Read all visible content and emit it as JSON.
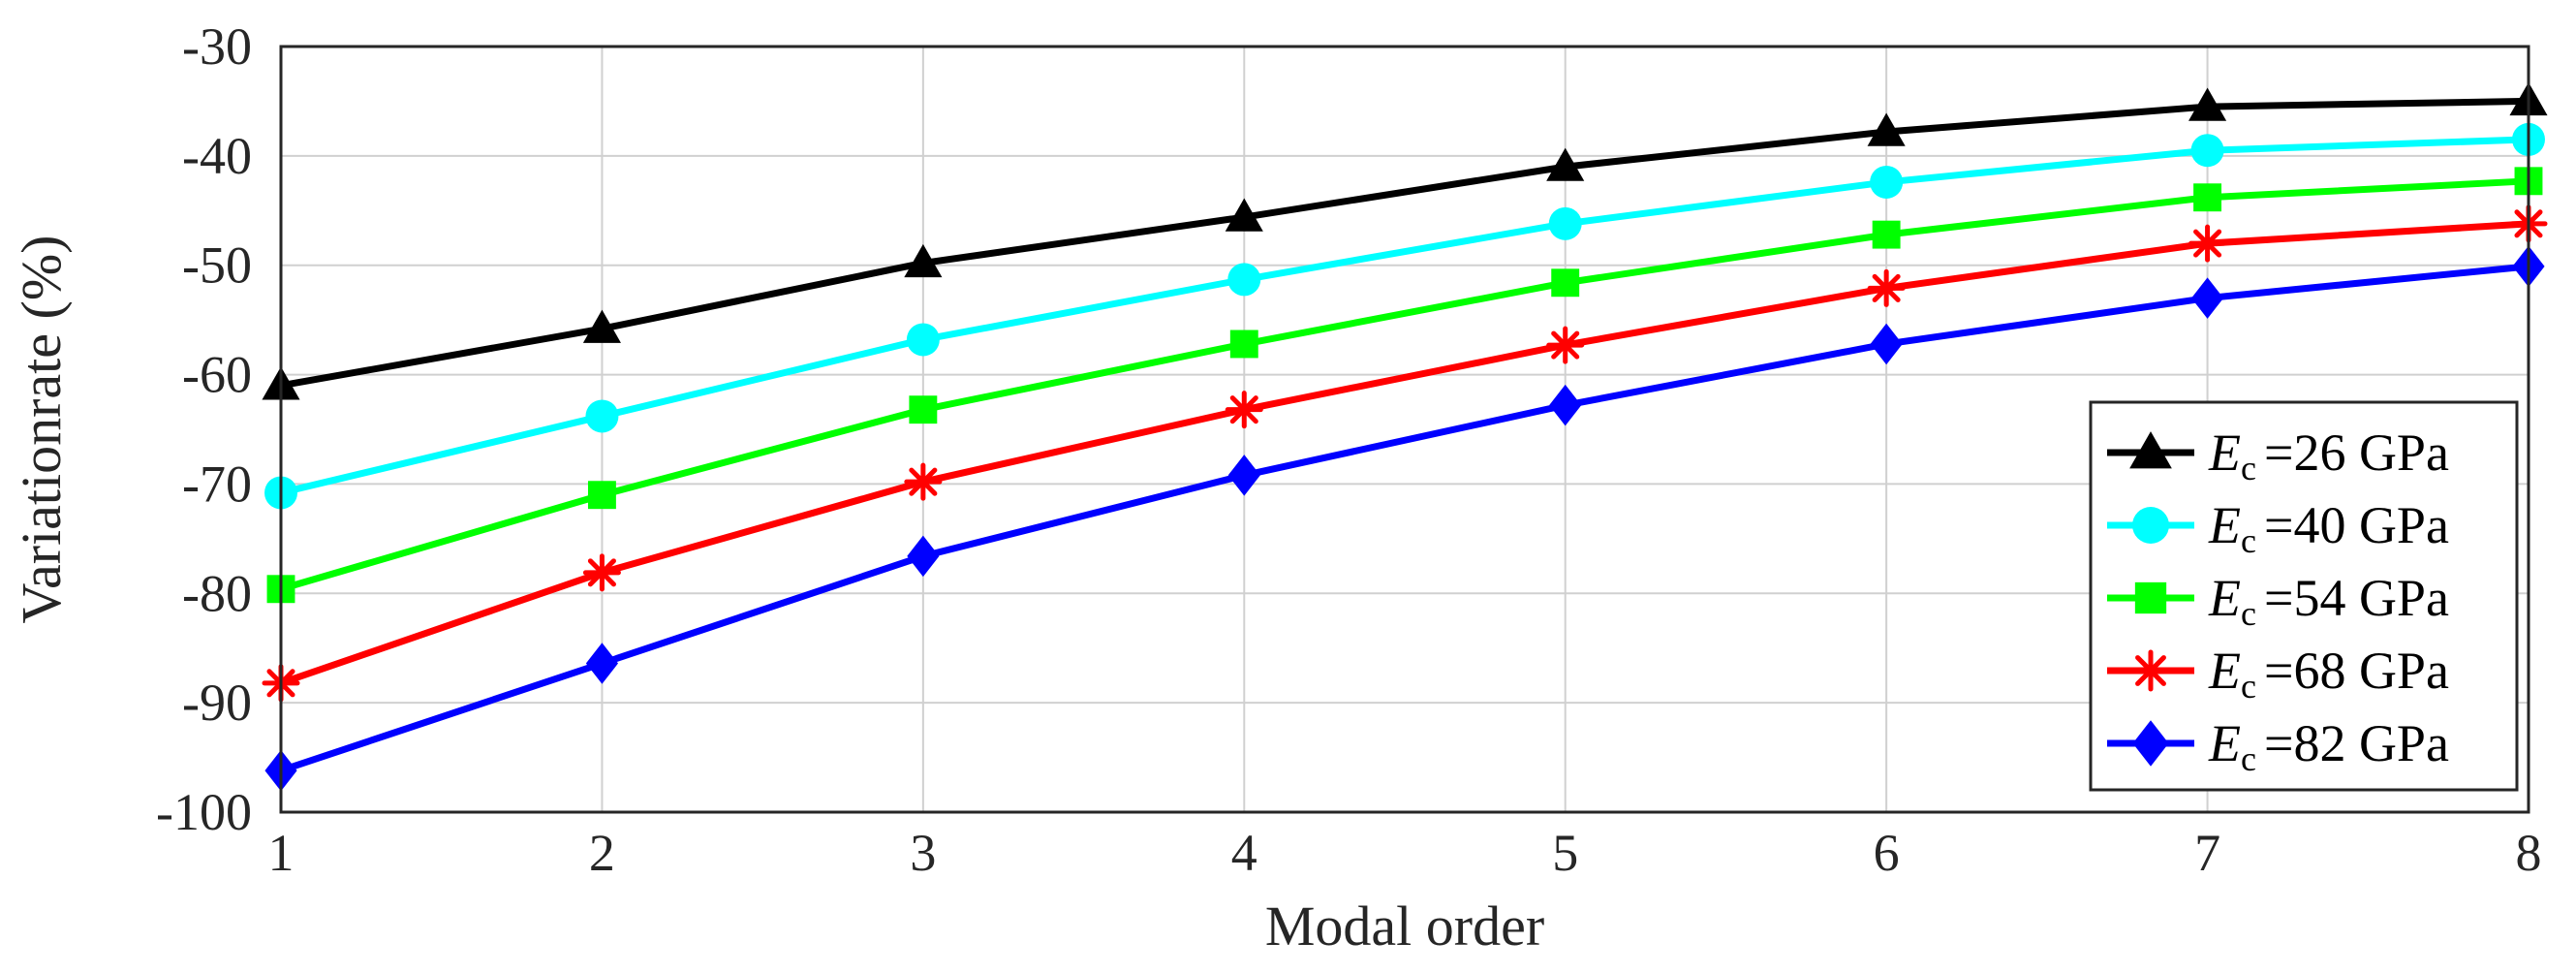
{
  "chart_data": {
    "type": "line",
    "title": "",
    "xlabel": "Modal order",
    "ylabel": "Variationrate (%)",
    "x": [
      1,
      2,
      3,
      4,
      5,
      6,
      7,
      8
    ],
    "xlim": [
      1,
      8
    ],
    "ylim": [
      -100,
      -30
    ],
    "xticks": [
      "1",
      "2",
      "3",
      "4",
      "5",
      "6",
      "7",
      "8"
    ],
    "yticks": [
      "-100",
      "-90",
      "-80",
      "-70",
      "-60",
      "-50",
      "-40",
      "-30"
    ],
    "grid": true,
    "legend_position": "bottom-right",
    "series": [
      {
        "name": "Ec =26 GPa",
        "legend_var": "E",
        "legend_sub": "c",
        "legend_value": "=26 GPa",
        "color": "#000000",
        "marker": "triangle",
        "values": [
          -61.0,
          -55.8,
          -49.8,
          -45.6,
          -41.0,
          -37.8,
          -35.5,
          -35.0
        ]
      },
      {
        "name": "Ec =40 GPa",
        "legend_var": "E",
        "legend_sub": "c",
        "legend_value": "=40 GPa",
        "color": "#00ffff",
        "marker": "circle",
        "values": [
          -70.8,
          -63.8,
          -56.8,
          -51.3,
          -46.2,
          -42.4,
          -39.5,
          -38.5
        ]
      },
      {
        "name": "Ec =54 GPa",
        "legend_var": "E",
        "legend_sub": "c",
        "legend_value": "=54 GPa",
        "color": "#00ff00",
        "marker": "square",
        "values": [
          -79.6,
          -71.0,
          -63.2,
          -57.2,
          -51.6,
          -47.2,
          -43.8,
          -42.3
        ]
      },
      {
        "name": "Ec =68 GPa",
        "legend_var": "E",
        "legend_sub": "c",
        "legend_value": "=68 GPa",
        "color": "#ff0000",
        "marker": "asterisk",
        "values": [
          -88.2,
          -78.1,
          -69.8,
          -63.2,
          -57.3,
          -52.1,
          -48.0,
          -46.2
        ]
      },
      {
        "name": "Ec =82 GPa",
        "legend_var": "E",
        "legend_sub": "c",
        "legend_value": "=82 GPa",
        "color": "#0000ff",
        "marker": "diamond",
        "values": [
          -96.2,
          -86.4,
          -76.6,
          -69.2,
          -62.8,
          -57.2,
          -53.0,
          -50.1
        ]
      }
    ]
  }
}
